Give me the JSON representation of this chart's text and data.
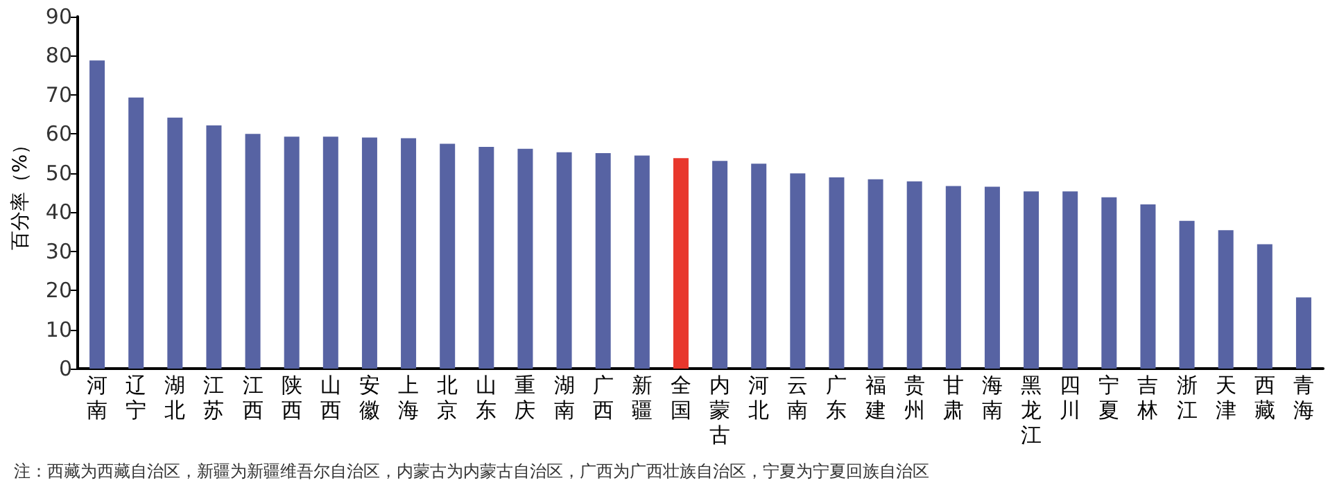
{
  "chart_data": {
    "type": "bar",
    "ylabel": "百分率（%）",
    "categories": [
      "河南",
      "辽宁",
      "湖北",
      "江苏",
      "江西",
      "陕西",
      "山西",
      "安徽",
      "上海",
      "北京",
      "山东",
      "重庆",
      "湖南",
      "广西",
      "新疆",
      "全国",
      "内蒙古",
      "河北",
      "云南",
      "广东",
      "福建",
      "贵州",
      "甘肃",
      "海南",
      "黑龙江",
      "四川",
      "宁夏",
      "吉林",
      "浙江",
      "天津",
      "西藏",
      "青海"
    ],
    "values": [
      78.8,
      69.3,
      64.2,
      62.2,
      60.0,
      59.3,
      59.3,
      59.1,
      58.9,
      57.5,
      56.7,
      56.2,
      55.3,
      55.1,
      54.5,
      53.8,
      53.1,
      52.4,
      49.9,
      48.9,
      48.4,
      47.9,
      46.7,
      46.5,
      45.3,
      45.3,
      43.8,
      42.0,
      37.8,
      35.4,
      31.8,
      18.2
    ],
    "colors": [
      "#5763a3",
      "#5763a3",
      "#5763a3",
      "#5763a3",
      "#5763a3",
      "#5763a3",
      "#5763a3",
      "#5763a3",
      "#5763a3",
      "#5763a3",
      "#5763a3",
      "#5763a3",
      "#5763a3",
      "#5763a3",
      "#5763a3",
      "#e8372c",
      "#5763a3",
      "#5763a3",
      "#5763a3",
      "#5763a3",
      "#5763a3",
      "#5763a3",
      "#5763a3",
      "#5763a3",
      "#5763a3",
      "#5763a3",
      "#5763a3",
      "#5763a3",
      "#5763a3",
      "#5763a3",
      "#5763a3",
      "#5763a3"
    ],
    "ylim": [
      0,
      90
    ],
    "yticks": [
      0,
      10,
      20,
      30,
      40,
      50,
      60,
      70,
      80,
      90
    ],
    "grid": false,
    "annotations": [
      "注：西藏为西藏自治区，新疆为新疆维吾尔自治区，内蒙古为内蒙古自治区，广西为广西壮族自治区，宁夏为宁夏回族自治区"
    ]
  }
}
